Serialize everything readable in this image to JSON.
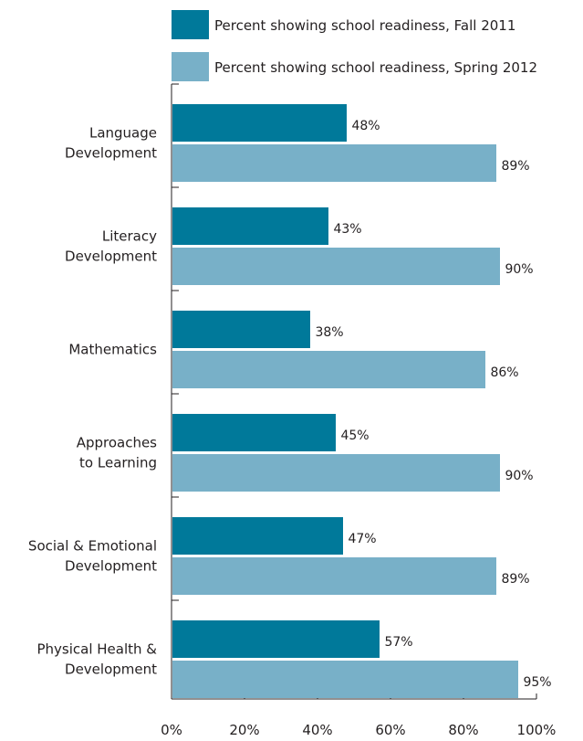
{
  "chart_data": {
    "type": "bar",
    "orientation": "horizontal",
    "categories": [
      [
        "Language",
        "Development"
      ],
      [
        "Literacy",
        "Development"
      ],
      [
        "Mathematics"
      ],
      [
        "Approaches",
        "to Learning"
      ],
      [
        "Social & Emotional",
        "Development"
      ],
      [
        "Physical Health &",
        "Development"
      ]
    ],
    "series": [
      {
        "name": "Percent showing school readiness, Fall 2011",
        "color": "#00799a",
        "values": [
          48,
          43,
          38,
          45,
          47,
          57
        ]
      },
      {
        "name": "Percent showing school readiness, Spring 2012",
        "color": "#78b0c8",
        "values": [
          89,
          90,
          86,
          90,
          89,
          95
        ]
      }
    ],
    "value_suffix": "%",
    "xlim": [
      0,
      100
    ],
    "xticks": [
      0,
      20,
      40,
      60,
      80,
      100
    ],
    "xtick_labels": [
      "0%",
      "20%",
      "40%",
      "60%",
      "80%",
      "100%"
    ],
    "legend_position": "top",
    "grid": false
  }
}
